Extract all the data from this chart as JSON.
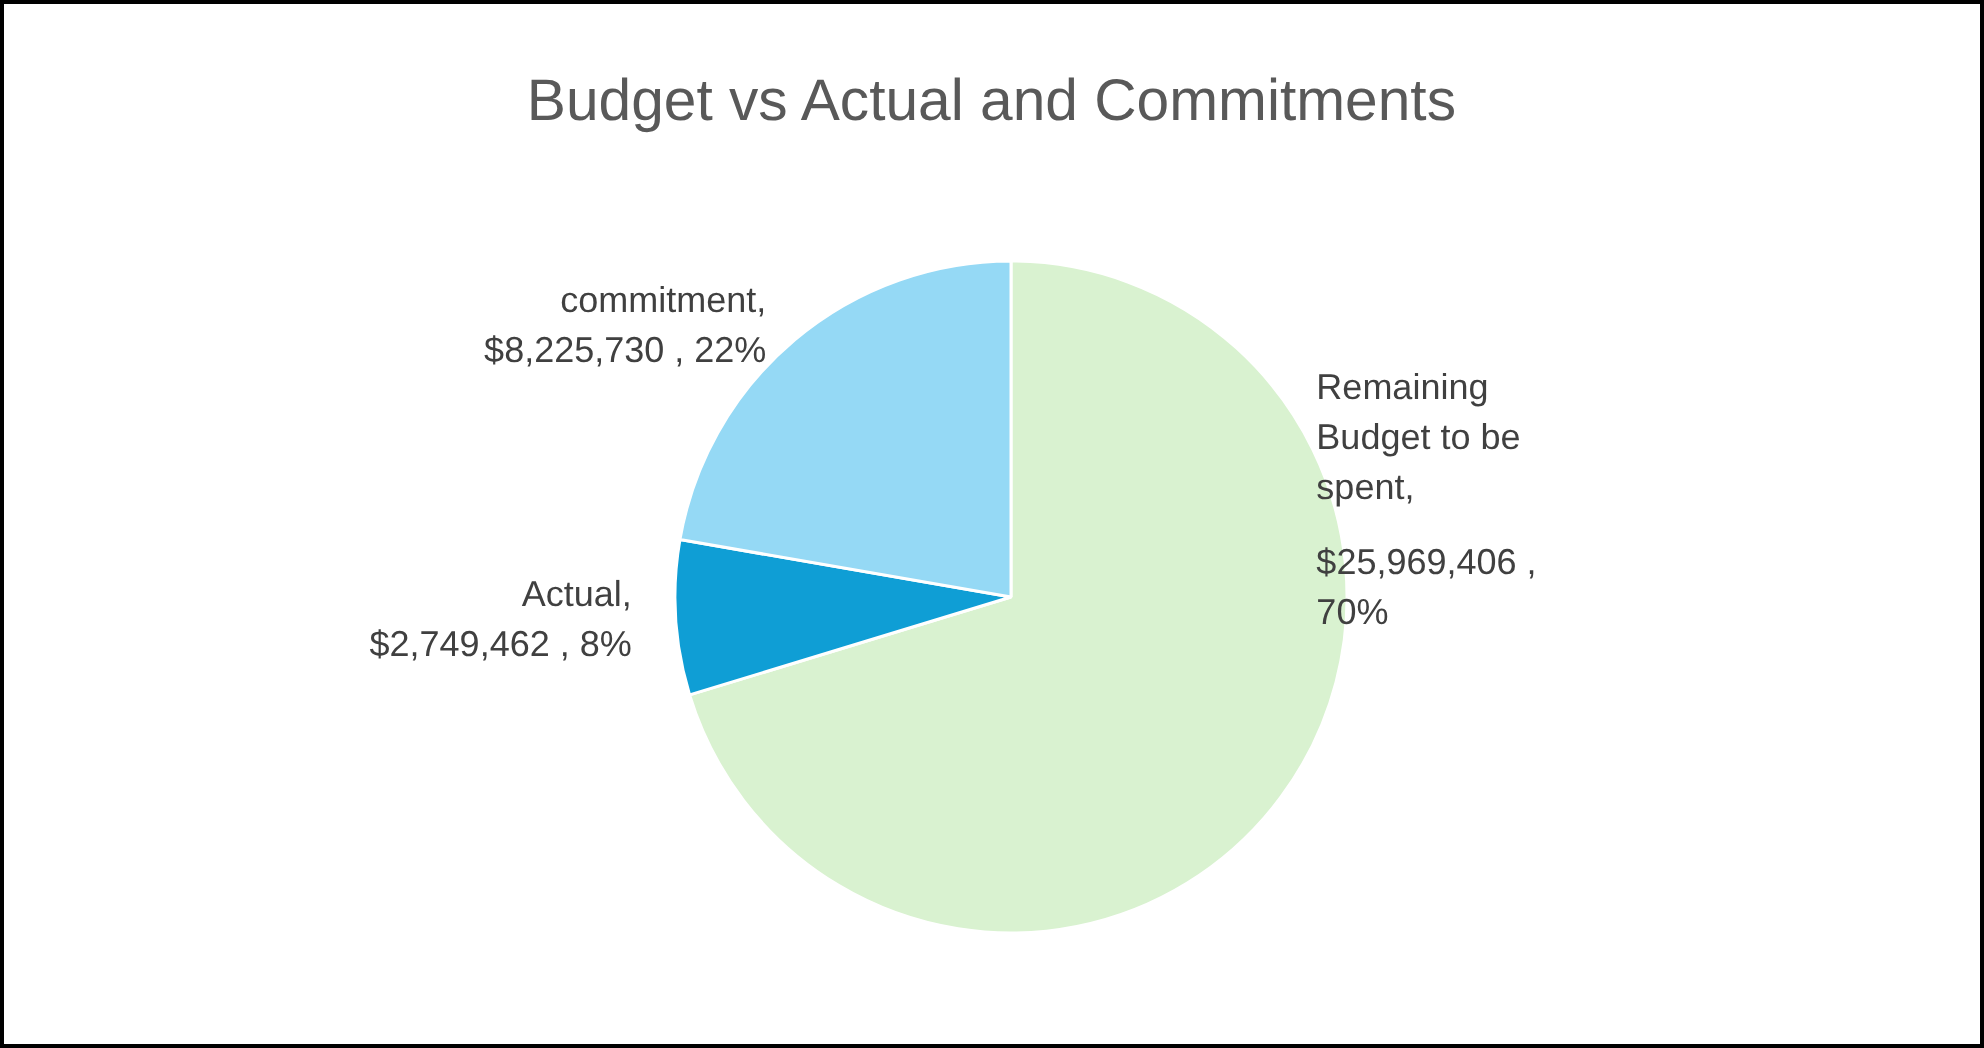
{
  "chart_data": {
    "type": "pie",
    "title": "Budget vs Actual and Commitments",
    "categories": [
      "Remaining Budget to be spent",
      "Actual",
      "commitment"
    ],
    "values": [
      25969406,
      2749462,
      8225730
    ],
    "colors": [
      "#d9f2d0",
      "#0f9ed5",
      "#95d9f5"
    ],
    "value_labels": [
      ", $25,969,406 , 70%",
      ", $2,749,462 , 8%",
      ", $8,225,730 , 22%"
    ]
  }
}
